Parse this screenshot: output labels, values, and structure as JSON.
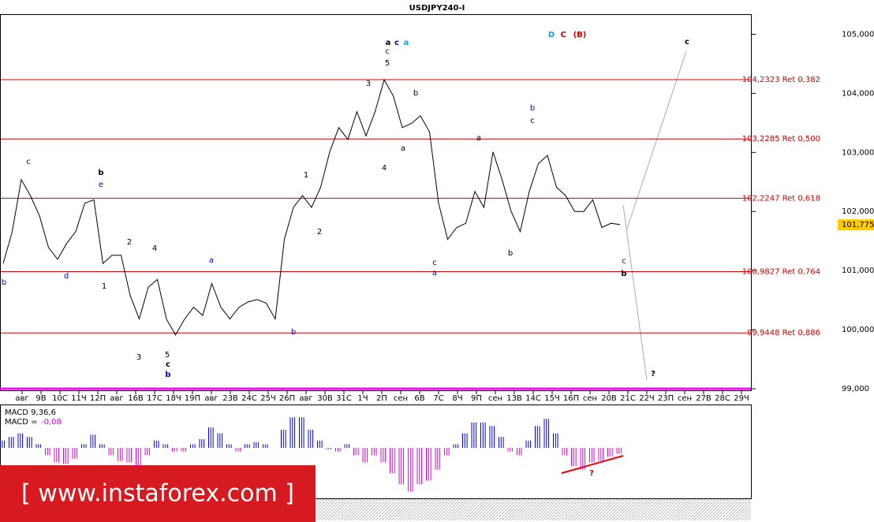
{
  "chart_data": {
    "type": "line",
    "title": "USDJPY240-I",
    "x_labels": [
      "авг",
      "9В",
      "10С",
      "11Ч",
      "12П",
      "авг",
      "16В",
      "17С",
      "18Ч",
      "19П",
      "авг",
      "23В",
      "24С",
      "25Ч",
      "26П",
      "авг",
      "30В",
      "31С",
      "1Ч",
      "2П",
      "сен",
      "6В",
      "7С",
      "8Ч",
      "9П",
      "сен",
      "13В",
      "14С",
      "15Ч",
      "16П",
      "сен",
      "20В",
      "21С",
      "22Ч",
      "23П",
      "сен",
      "27В",
      "28С",
      "29Ч"
    ],
    "series": [
      {
        "color": "#000000",
        "values": [
          101.12,
          101.66,
          102.54,
          102.27,
          101.93,
          101.39,
          101.19,
          101.46,
          101.66,
          102.14,
          102.2,
          101.12,
          101.26,
          101.26,
          100.58,
          100.18,
          100.72,
          100.85,
          100.18,
          99.91,
          100.18,
          100.38,
          100.24,
          100.78,
          100.38,
          100.18,
          100.38,
          100.47,
          100.51,
          100.45,
          100.18,
          101.53,
          102.07,
          102.27,
          102.07,
          102.41,
          103.01,
          103.42,
          103.22,
          103.69,
          103.28,
          103.69,
          104.23,
          103.96,
          103.42,
          103.49,
          103.62,
          103.35,
          102.14,
          101.53,
          101.73,
          101.8,
          102.34,
          102.07,
          103.01,
          102.54,
          102.0,
          101.66,
          102.34,
          102.81,
          102.95,
          102.41,
          102.27,
          102.0,
          102.0,
          102.2,
          101.73,
          101.8,
          101.78
        ]
      }
    ],
    "ylim": [
      98.96,
      105.34
    ],
    "yticks": [
      {
        "value": 99,
        "label": "99,000"
      },
      {
        "value": 100,
        "label": "100,000"
      },
      {
        "value": 101,
        "label": "101,000"
      },
      {
        "value": 102,
        "label": "102,000"
      },
      {
        "value": 103,
        "label": "103,000"
      },
      {
        "value": 104,
        "label": "104,000"
      },
      {
        "value": 105,
        "label": "105,000"
      }
    ],
    "last_value": {
      "value": 101.775,
      "label": "101,775"
    },
    "levels": [
      {
        "value": 104.2323,
        "label": "104,2323 Ret 0,382"
      },
      {
        "value": 103.2285,
        "label": "103,2285 Ret 0,500"
      },
      {
        "value": 102.2247,
        "label": "102,2247 Ret 0,618"
      },
      {
        "value": 100.9827,
        "label": "100,9827 Ret 0,764"
      },
      {
        "value": 99.9448,
        "label": "99,9448 Ret 0,886"
      }
    ],
    "level_color": "#cc0000",
    "base_line": {
      "value": 99,
      "color": "#ff00ff"
    },
    "wave_labels": [
      {
        "text": "b",
        "color": "#0000cc"
      },
      {
        "text": "c",
        "color": "#0000cc"
      },
      {
        "text": "d",
        "color": "#0000cc"
      },
      {
        "text": "b",
        "color": "#000000"
      },
      {
        "text": "e",
        "color": "#0000cc"
      },
      {
        "text": "1",
        "color": "#000000"
      },
      {
        "text": "2",
        "color": "#000000"
      },
      {
        "text": "4",
        "color": "#000000"
      },
      {
        "text": "3",
        "color": "#000000"
      },
      {
        "text": "5",
        "color": "#000000"
      },
      {
        "text": "c",
        "color": "#000000"
      },
      {
        "text": "b",
        "color": "#0000cc"
      },
      {
        "text": "a",
        "color": "#0000cc"
      },
      {
        "text": "b",
        "color": "#0000cc"
      },
      {
        "text": "1",
        "color": "#000000"
      },
      {
        "text": "2",
        "color": "#000000"
      },
      {
        "text": "3",
        "color": "#000000"
      },
      {
        "text": "4",
        "color": "#000000"
      },
      {
        "text": "a",
        "color": "#000000"
      },
      {
        "text": "c",
        "color": "#0000cc"
      },
      {
        "text": "a",
        "color": "#1a9ad9"
      },
      {
        "text": "c",
        "color": "#0000cc"
      },
      {
        "text": "5",
        "color": "#000000"
      },
      {
        "text": "b",
        "color": "#000000"
      },
      {
        "text": "a",
        "color": "#000000"
      },
      {
        "text": "a",
        "color": "#000000"
      },
      {
        "text": "c",
        "color": "#000000"
      },
      {
        "text": "a",
        "color": "#0000cc"
      },
      {
        "text": "b",
        "color": "#000000"
      },
      {
        "text": "b",
        "color": "#0000cc"
      },
      {
        "text": "c",
        "color": "#000000"
      },
      {
        "text": "c",
        "color": "#0000cc"
      },
      {
        "text": "b",
        "color": "#000000"
      },
      {
        "text": "?",
        "color": "#000000"
      },
      {
        "text": "D",
        "color": "#1a9ad9"
      },
      {
        "text": "C",
        "color": "#cc0000"
      },
      {
        "text": "(B)",
        "color": "#cc0000"
      },
      {
        "text": "c",
        "color": "#000000"
      },
      {
        "text": "?",
        "color": "#cc0000"
      }
    ],
    "macd": {
      "title": "MACD 9,36,6",
      "value_prefix": "MACD =",
      "current": {
        "value": -0.08,
        "label": "-0,08"
      },
      "ylim": [
        -0.65,
        0.52
      ],
      "up_color": "#0000dd",
      "down_color": "#dd00dd",
      "values": [
        0.1,
        0.15,
        0.2,
        0.15,
        0.05,
        -0.1,
        -0.2,
        -0.22,
        -0.15,
        0.05,
        0.18,
        0.05,
        -0.1,
        -0.18,
        -0.2,
        -0.25,
        -0.1,
        0.1,
        0.05,
        -0.05,
        -0.05,
        0.05,
        0.12,
        0.28,
        0.2,
        0.05,
        -0.05,
        0.05,
        0.08,
        0.05,
        0.0,
        0.25,
        0.42,
        0.42,
        0.25,
        0.1,
        -0.02,
        -0.05,
        0.05,
        -0.1,
        -0.2,
        -0.1,
        -0.2,
        -0.35,
        -0.5,
        -0.6,
        -0.5,
        -0.45,
        -0.3,
        -0.1,
        0.05,
        0.2,
        0.35,
        0.35,
        0.3,
        0.15,
        -0.05,
        -0.1,
        0.1,
        0.3,
        0.4,
        0.2,
        -0.1,
        -0.25,
        -0.3,
        -0.2,
        -0.18,
        -0.12,
        -0.08
      ]
    },
    "watermark": "[ www.instaforex.com ]"
  }
}
